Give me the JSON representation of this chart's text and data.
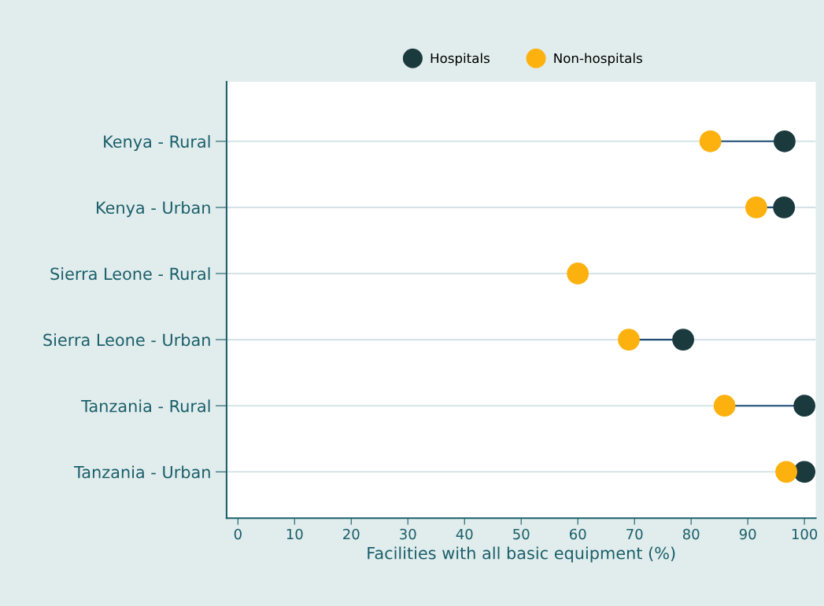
{
  "chart_data": {
    "type": "scatter",
    "orientation": "horizontal",
    "xlabel": "Facilities with all basic equipment (%)",
    "categories": [
      "Kenya - Rural",
      "Kenya - Urban",
      "Sierra Leone - Rural",
      "Sierra Leone - Urban",
      "Tanzania - Rural",
      "Tanzania - Urban"
    ],
    "series": [
      {
        "name": "Hospitals",
        "color": "#1b3a3d",
        "values": [
          96.5,
          96.4,
          null,
          78.6,
          100,
          100
        ]
      },
      {
        "name": "Non-hospitals",
        "color": "#fcb10f",
        "values": [
          83.4,
          91.5,
          60,
          69,
          85.9,
          96.8
        ]
      }
    ],
    "xlim": [
      -2,
      102
    ],
    "xticks": [
      0,
      10,
      20,
      30,
      40,
      50,
      60,
      70,
      80,
      90,
      100
    ],
    "grid": "y",
    "legend": "top",
    "marker": "circle"
  }
}
